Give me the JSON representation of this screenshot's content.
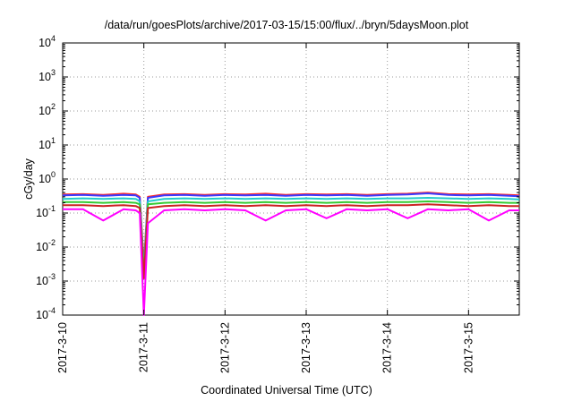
{
  "chart_data": {
    "type": "line",
    "title": "/data/run/goesPlots/archive/2017-03-15/15:00/flux/../bryn/5daysMoon.plot",
    "xlabel": "Coordinated Universal Time (UTC)",
    "ylabel": "cGy/day",
    "yscale": "log",
    "ylim": [
      0.0001,
      10000
    ],
    "xlim": [
      "2017-03-10",
      "2017-03-15 15:00"
    ],
    "grid": true,
    "legend": "none",
    "xticks": [
      "2017-3-10",
      "2017-3-11",
      "2017-3-12",
      "2017-3-13",
      "2017-3-14",
      "2017-3-15"
    ],
    "yticks": [
      {
        "base": "10",
        "exp": "-4"
      },
      {
        "base": "10",
        "exp": "-3"
      },
      {
        "base": "10",
        "exp": "-2"
      },
      {
        "base": "10",
        "exp": "-1"
      },
      {
        "base": "10",
        "exp": "0"
      },
      {
        "base": "10",
        "exp": "1"
      },
      {
        "base": "10",
        "exp": "2"
      },
      {
        "base": "10",
        "exp": "3"
      },
      {
        "base": "10",
        "exp": "4"
      }
    ],
    "x_days": [
      0,
      0.25,
      0.5,
      0.75,
      0.9,
      0.95,
      1.0,
      1.05,
      1.25,
      1.5,
      1.75,
      2.0,
      2.25,
      2.5,
      2.75,
      3.0,
      3.25,
      3.5,
      3.75,
      4.0,
      4.25,
      4.5,
      4.75,
      5.0,
      5.25,
      5.5,
      5.625
    ],
    "series": [
      {
        "color": "#ff2a2a",
        "values": [
          0.35,
          0.36,
          0.34,
          0.37,
          0.35,
          0.3,
          0.003,
          0.3,
          0.35,
          0.36,
          0.34,
          0.36,
          0.35,
          0.37,
          0.34,
          0.36,
          0.35,
          0.36,
          0.34,
          0.36,
          0.37,
          0.4,
          0.36,
          0.35,
          0.36,
          0.34,
          0.33
        ]
      },
      {
        "color": "#3a3aff",
        "values": [
          0.33,
          0.34,
          0.32,
          0.34,
          0.33,
          0.28,
          0.002,
          0.28,
          0.33,
          0.34,
          0.32,
          0.34,
          0.33,
          0.34,
          0.32,
          0.34,
          0.33,
          0.34,
          0.32,
          0.34,
          0.35,
          0.38,
          0.34,
          0.33,
          0.34,
          0.32,
          0.31
        ]
      },
      {
        "color": "#22cccc",
        "values": [
          0.26,
          0.27,
          0.26,
          0.27,
          0.26,
          0.22,
          0.002,
          0.22,
          0.26,
          0.27,
          0.26,
          0.27,
          0.26,
          0.27,
          0.26,
          0.27,
          0.26,
          0.27,
          0.26,
          0.27,
          0.27,
          0.28,
          0.27,
          0.26,
          0.27,
          0.26,
          0.25
        ]
      },
      {
        "color": "#33cc33",
        "values": [
          0.21,
          0.21,
          0.2,
          0.21,
          0.2,
          0.18,
          0.0015,
          0.18,
          0.2,
          0.21,
          0.2,
          0.21,
          0.2,
          0.21,
          0.2,
          0.21,
          0.2,
          0.21,
          0.2,
          0.21,
          0.21,
          0.22,
          0.21,
          0.2,
          0.21,
          0.2,
          0.2
        ]
      },
      {
        "color": "#cc2222",
        "values": [
          0.17,
          0.17,
          0.16,
          0.17,
          0.16,
          0.14,
          0.0012,
          0.14,
          0.16,
          0.17,
          0.16,
          0.17,
          0.16,
          0.17,
          0.16,
          0.17,
          0.16,
          0.17,
          0.16,
          0.17,
          0.17,
          0.18,
          0.17,
          0.16,
          0.17,
          0.16,
          0.16
        ]
      },
      {
        "color": "#ff00ff",
        "values": [
          0.13,
          0.13,
          0.06,
          0.13,
          0.12,
          0.1,
          0.0001,
          0.05,
          0.12,
          0.13,
          0.12,
          0.13,
          0.12,
          0.06,
          0.12,
          0.13,
          0.07,
          0.13,
          0.12,
          0.13,
          0.07,
          0.13,
          0.12,
          0.13,
          0.06,
          0.12,
          0.12
        ]
      }
    ]
  }
}
